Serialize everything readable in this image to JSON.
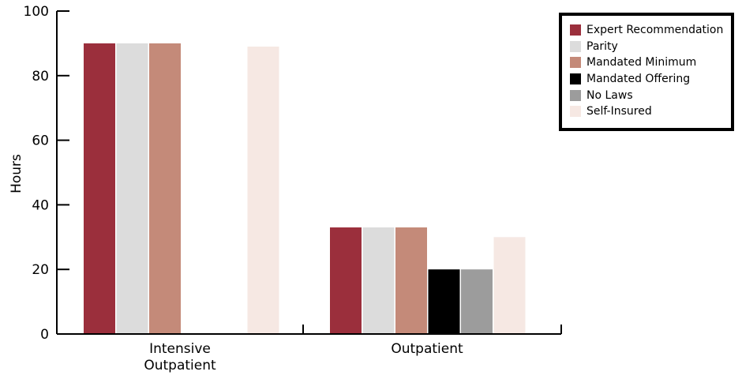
{
  "chart_data": {
    "type": "bar",
    "ylabel": "Hours",
    "ylim": [
      0,
      100
    ],
    "yticks": [
      0,
      20,
      40,
      60,
      80,
      100
    ],
    "categories": [
      [
        "Intensive",
        "Outpatient"
      ],
      [
        "Outpatient"
      ]
    ],
    "series": [
      {
        "name": "Expert Recommendation",
        "color": "#9b2f3c",
        "values": [
          90,
          33
        ]
      },
      {
        "name": "Parity",
        "color": "#dcdcdc",
        "values": [
          90,
          33
        ]
      },
      {
        "name": "Mandated Minimum",
        "color": "#c48a79",
        "values": [
          90,
          33
        ]
      },
      {
        "name": "Mandated Offering",
        "color": "#000000",
        "values": [
          0,
          20
        ]
      },
      {
        "name": "No Laws",
        "color": "#9c9c9c",
        "values": [
          0,
          20
        ]
      },
      {
        "name": "Self-Insured",
        "color": "#f6e8e3",
        "values": [
          89,
          30
        ]
      }
    ],
    "legend_position": "top-right",
    "grid": false
  }
}
